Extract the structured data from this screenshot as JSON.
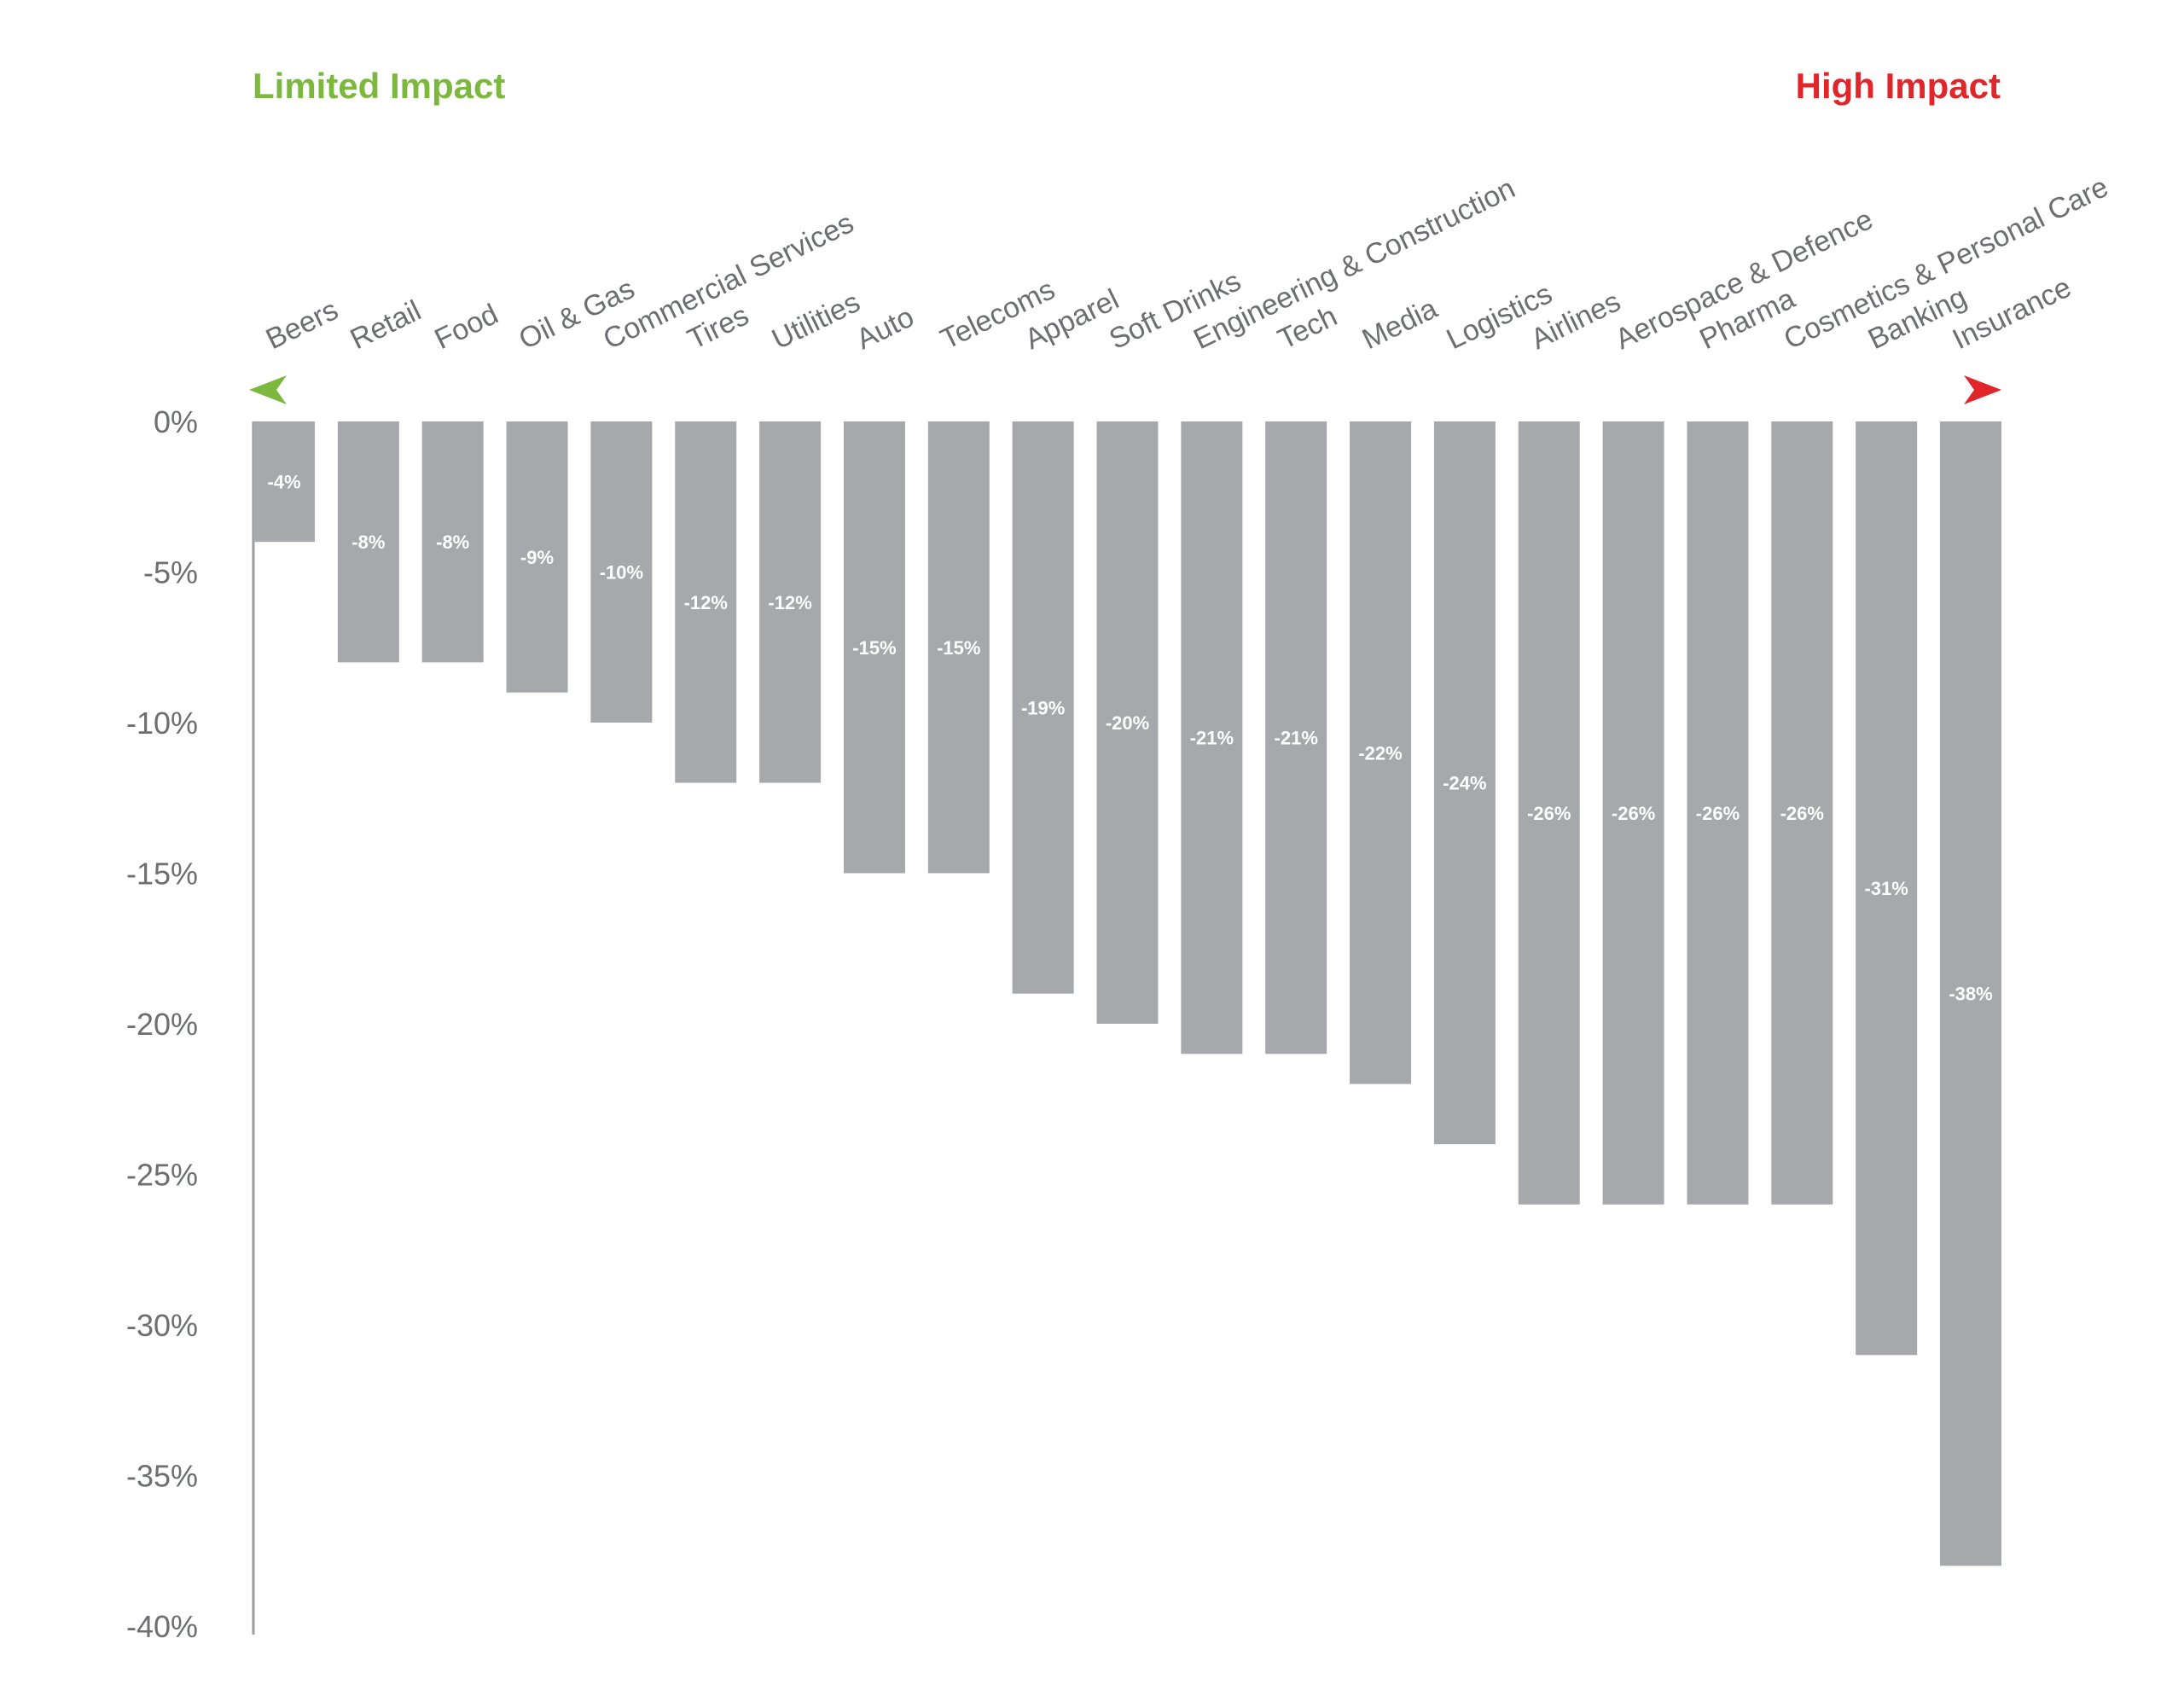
{
  "legend": {
    "left_label": "Limited Impact",
    "right_label": "High Impact"
  },
  "colors": {
    "bar": "#a7a8ab",
    "axis": "#9b9c9f",
    "gradient_start": "#7cb83e",
    "gradient_mid": "#c9862d",
    "gradient_end": "#e0262b"
  },
  "chart_data": {
    "type": "bar",
    "orientation": "vertical-downward",
    "categories": [
      "Beers",
      "Retail",
      "Food",
      "Oil & Gas",
      "Commercial Services",
      "Tires",
      "Utilities",
      "Auto",
      "Telecoms",
      "Apparel",
      "Soft Drinks",
      "Engineering & Construction",
      "Tech",
      "Media",
      "Logistics",
      "Airlines",
      "Aerospace & Defence",
      "Pharma",
      "Cosmetics & Personal Care",
      "Banking",
      "Insurance"
    ],
    "values": [
      -4,
      -8,
      -8,
      -9,
      -10,
      -12,
      -12,
      -15,
      -15,
      -19,
      -20,
      -21,
      -21,
      -22,
      -24,
      -26,
      -26,
      -26,
      -26,
      -31,
      -38
    ],
    "data_labels": [
      "-4%",
      "-8%",
      "-8%",
      "-9%",
      "-10%",
      "-12%",
      "-12%",
      "-15%",
      "-15%",
      "-19%",
      "-20%",
      "-21%",
      "-21%",
      "-22%",
      "-24%",
      "-26%",
      "-26%",
      "-26%",
      "-26%",
      "-31%",
      "-38%"
    ],
    "ylim": [
      -40,
      0
    ],
    "yticks": [
      0,
      -5,
      -10,
      -15,
      -20,
      -25,
      -30,
      -35,
      -40
    ],
    "ytick_labels": [
      "0%",
      "-5%",
      "-10%",
      "-15%",
      "-20%",
      "-25%",
      "-30%",
      "-35%",
      "-40%"
    ],
    "title": "",
    "xlabel": "",
    "ylabel": "",
    "grid": false,
    "legend_placement": "top"
  }
}
